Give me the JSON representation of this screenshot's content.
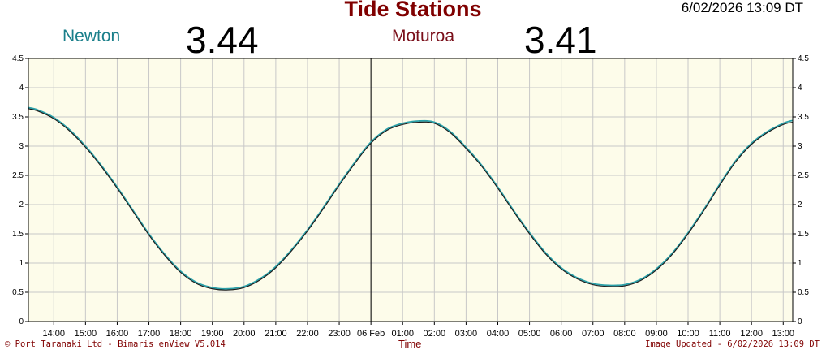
{
  "header": {
    "title": "Tide Stations",
    "datetime": "6/02/2026 13:09 DT",
    "stations": [
      {
        "name": "Newton",
        "value": "3.44"
      },
      {
        "name": "Moturoa",
        "value": "3.41"
      }
    ]
  },
  "colors": {
    "title": "#800000",
    "newton": "#1a7f8a",
    "moturoa": "#7a0f1a",
    "plot_bg": "#fdfcea",
    "grid": "#c8c8c8",
    "series_newton": "#2aa0a8",
    "series_moturoa": "#1a1a1a"
  },
  "footer": {
    "left": "© Port Taranaki Ltd - Bimaris enView V5.014",
    "center": "Time",
    "right": "Image Updated - 6/02/2026 13:09 DT"
  },
  "chart_data": {
    "type": "line",
    "xlabel": "Time",
    "ylabel": "",
    "ylim": [
      0,
      4.5
    ],
    "y_ticks": [
      "0",
      "0.5",
      "1",
      "1.5",
      "2",
      "2.5",
      "3",
      "3.5",
      "4",
      "4.5"
    ],
    "x_range_hours": [
      13.2,
      37.3
    ],
    "x_ticks": [
      {
        "h": 14,
        "label": "14:00"
      },
      {
        "h": 15,
        "label": "15:00"
      },
      {
        "h": 16,
        "label": "16:00"
      },
      {
        "h": 17,
        "label": "17:00"
      },
      {
        "h": 18,
        "label": "18:00"
      },
      {
        "h": 19,
        "label": "19:00"
      },
      {
        "h": 20,
        "label": "20:00"
      },
      {
        "h": 21,
        "label": "21:00"
      },
      {
        "h": 22,
        "label": "22:00"
      },
      {
        "h": 23,
        "label": "23:00"
      },
      {
        "h": 24,
        "label": "06 Feb"
      },
      {
        "h": 25,
        "label": "01:00"
      },
      {
        "h": 26,
        "label": "02:00"
      },
      {
        "h": 27,
        "label": "03:00"
      },
      {
        "h": 28,
        "label": "04:00"
      },
      {
        "h": 29,
        "label": "05:00"
      },
      {
        "h": 30,
        "label": "06:00"
      },
      {
        "h": 31,
        "label": "07:00"
      },
      {
        "h": 32,
        "label": "08:00"
      },
      {
        "h": 33,
        "label": "09:00"
      },
      {
        "h": 34,
        "label": "10:00"
      },
      {
        "h": 35,
        "label": "11:00"
      },
      {
        "h": 36,
        "label": "12:00"
      },
      {
        "h": 37,
        "label": "13:00"
      }
    ],
    "date_marker_hour": 24,
    "grid": true,
    "series": [
      {
        "name": "Newton",
        "x": [
          13.2,
          13.5,
          14,
          14.5,
          15,
          15.5,
          16,
          16.5,
          17,
          17.5,
          18,
          18.5,
          19,
          19.5,
          20,
          20.5,
          21,
          21.5,
          22,
          22.5,
          23,
          23.5,
          24,
          24.5,
          25,
          25.5,
          26,
          26.5,
          27,
          27.5,
          28,
          28.5,
          29,
          29.5,
          30,
          30.5,
          31,
          31.5,
          32,
          32.5,
          33,
          33.5,
          34,
          34.5,
          35,
          35.5,
          36,
          36.5,
          37,
          37.3
        ],
        "values": [
          3.66,
          3.62,
          3.49,
          3.28,
          3.0,
          2.67,
          2.3,
          1.9,
          1.5,
          1.15,
          0.86,
          0.67,
          0.58,
          0.56,
          0.6,
          0.73,
          0.94,
          1.23,
          1.57,
          1.95,
          2.35,
          2.73,
          3.07,
          3.29,
          3.39,
          3.43,
          3.41,
          3.25,
          2.98,
          2.67,
          2.3,
          1.9,
          1.52,
          1.18,
          0.92,
          0.75,
          0.65,
          0.62,
          0.63,
          0.72,
          0.9,
          1.17,
          1.52,
          1.92,
          2.35,
          2.75,
          3.05,
          3.25,
          3.39,
          3.44
        ]
      },
      {
        "name": "Moturoa",
        "x": [
          13.2,
          13.5,
          14,
          14.5,
          15,
          15.5,
          16,
          16.5,
          17,
          17.5,
          18,
          18.5,
          19,
          19.5,
          20,
          20.5,
          21,
          21.5,
          22,
          22.5,
          23,
          23.5,
          24,
          24.5,
          25,
          25.5,
          26,
          26.5,
          27,
          27.5,
          28,
          28.5,
          29,
          29.5,
          30,
          30.5,
          31,
          31.5,
          32,
          32.5,
          33,
          33.5,
          34,
          34.5,
          35,
          35.5,
          36,
          36.5,
          37,
          37.3
        ],
        "values": [
          3.64,
          3.6,
          3.47,
          3.26,
          2.98,
          2.65,
          2.28,
          1.88,
          1.48,
          1.13,
          0.84,
          0.65,
          0.56,
          0.54,
          0.58,
          0.71,
          0.92,
          1.21,
          1.55,
          1.93,
          2.33,
          2.71,
          3.05,
          3.27,
          3.37,
          3.41,
          3.39,
          3.23,
          2.96,
          2.65,
          2.28,
          1.88,
          1.5,
          1.16,
          0.9,
          0.73,
          0.63,
          0.6,
          0.61,
          0.7,
          0.88,
          1.15,
          1.5,
          1.9,
          2.33,
          2.73,
          3.03,
          3.23,
          3.37,
          3.41
        ]
      }
    ]
  }
}
